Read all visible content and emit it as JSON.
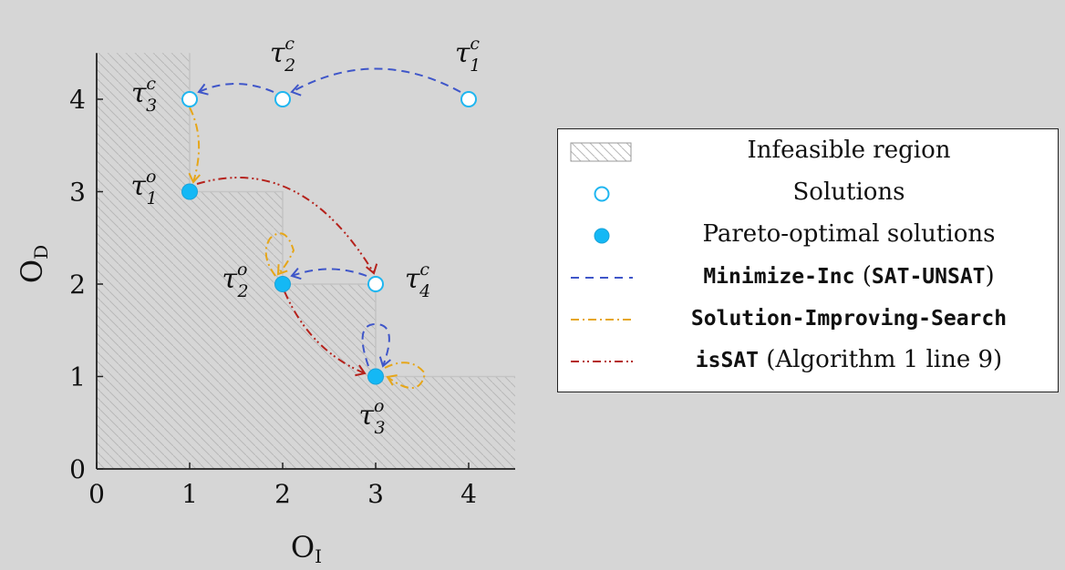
{
  "colors": {
    "hollow_point": "#1fb6f0",
    "filled_point": "#14b8f5",
    "blue_dashed": "#3f56c9",
    "orange_dashdot": "#e6a619",
    "red_dashdotdot": "#b5221c",
    "hatch": "#b8b8b8"
  },
  "chart_data": {
    "type": "scatter",
    "xlabel": "O",
    "xlabel_sub": "I",
    "ylabel": "O",
    "ylabel_sub": "D",
    "xlim": [
      0,
      4.5
    ],
    "ylim": [
      0,
      4.5
    ],
    "x_ticks": [
      "0",
      "1",
      "2",
      "3",
      "4"
    ],
    "y_ticks": [
      "0",
      "1",
      "2",
      "3",
      "4"
    ],
    "grid": false,
    "legend_position": "right",
    "series": [
      {
        "name": "Solutions",
        "marker": "hollow-circle",
        "points": [
          {
            "label": "τ",
            "sup": "c",
            "sub": "1",
            "x": 4,
            "y": 4
          },
          {
            "label": "τ",
            "sup": "c",
            "sub": "2",
            "x": 2,
            "y": 4
          },
          {
            "label": "τ",
            "sup": "c",
            "sub": "3",
            "x": 1,
            "y": 4
          },
          {
            "label": "τ",
            "sup": "c",
            "sub": "4",
            "x": 3,
            "y": 2
          }
        ]
      },
      {
        "name": "Pareto-optimal solutions",
        "marker": "filled-circle",
        "points": [
          {
            "label": "τ",
            "sup": "o",
            "sub": "1",
            "x": 1,
            "y": 3
          },
          {
            "label": "τ",
            "sup": "o",
            "sub": "2",
            "x": 2,
            "y": 2
          },
          {
            "label": "τ",
            "sup": "o",
            "sub": "3",
            "x": 3,
            "y": 1
          }
        ]
      }
    ],
    "infeasible_region": {
      "name": "Infeasible region",
      "staircase": [
        [
          1,
          4.5
        ],
        [
          1,
          3
        ],
        [
          2,
          3
        ],
        [
          2,
          2
        ],
        [
          3,
          2
        ],
        [
          3,
          1
        ],
        [
          4.5,
          1
        ]
      ]
    },
    "transitions": [
      {
        "method": "Minimize-Inc",
        "from": [
          4,
          4
        ],
        "to": [
          2,
          4
        ]
      },
      {
        "method": "Minimize-Inc",
        "from": [
          2,
          4
        ],
        "to": [
          1,
          4
        ]
      },
      {
        "method": "Solution-Improving-Search",
        "from": [
          1,
          4
        ],
        "to": [
          1,
          3
        ]
      },
      {
        "method": "isSAT",
        "from": [
          1,
          3
        ],
        "to": [
          3,
          2
        ]
      },
      {
        "method": "Minimize-Inc",
        "from": [
          3,
          2
        ],
        "to": [
          2,
          2
        ]
      },
      {
        "method": "Solution-Improving-Search",
        "from": [
          2,
          2
        ],
        "to": [
          2,
          2
        ]
      },
      {
        "method": "isSAT",
        "from": [
          2,
          2
        ],
        "to": [
          3,
          1
        ]
      },
      {
        "method": "Minimize-Inc",
        "from": [
          3,
          1
        ],
        "to": [
          3,
          1
        ]
      },
      {
        "method": "Solution-Improving-Search",
        "from": [
          3,
          1
        ],
        "to": [
          3,
          1
        ]
      }
    ]
  },
  "legend": {
    "infeasible": "Infeasible region",
    "solutions": "Solutions",
    "pareto": "Pareto-optimal solutions",
    "minimize_inc_code": "Minimize-Inc",
    "minimize_inc_open": " (",
    "minimize_inc_paren_code": "SAT-UNSAT",
    "minimize_inc_close": ")",
    "solution_improving_code": "Solution-Improving-Search",
    "issat_code": "isSAT",
    "issat_rest": " (Algorithm 1 line 9)"
  }
}
